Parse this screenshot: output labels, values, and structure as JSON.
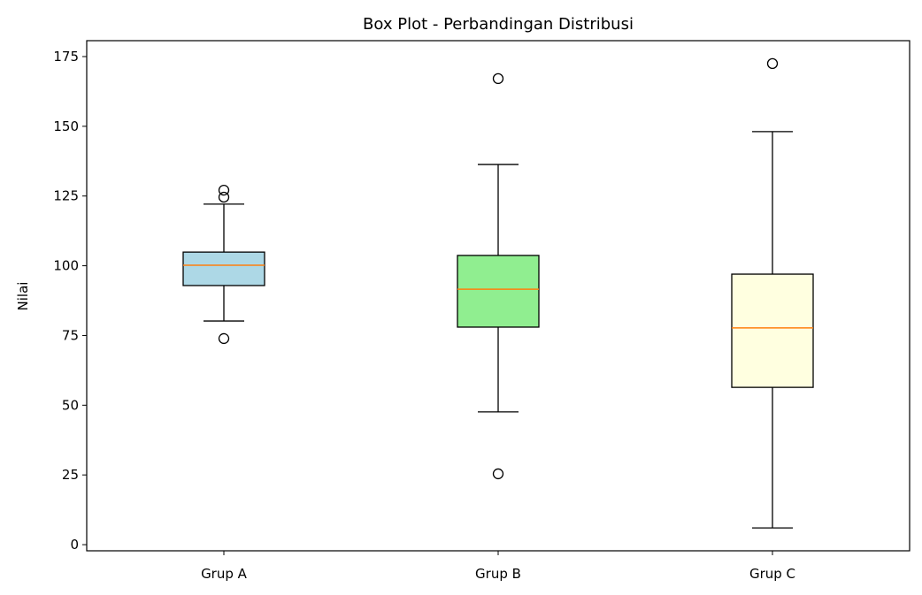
{
  "chart_data": {
    "type": "boxplot",
    "title": "Box Plot - Perbandingan Distribusi",
    "xlabel": "",
    "ylabel": "Nilai",
    "ylim": [
      -2.2,
      180.7
    ],
    "yticks": [
      0,
      25,
      50,
      75,
      100,
      125,
      150,
      175
    ],
    "grid": false,
    "median_color": "#ff7f0e",
    "groups": [
      {
        "label": "Grup A",
        "color": "#add8e6",
        "whisker_low": 80.2,
        "q1": 92.9,
        "median": 100.2,
        "q3": 104.9,
        "whisker_high": 122.1,
        "outliers": [
          127.1,
          124.6,
          73.9
        ]
      },
      {
        "label": "Grup B",
        "color": "#90ee90",
        "whisker_low": 47.6,
        "q1": 78.0,
        "median": 91.6,
        "q3": 103.7,
        "whisker_high": 136.3,
        "outliers": [
          167.1,
          25.4
        ]
      },
      {
        "label": "Grup C",
        "color": "#ffffe0",
        "whisker_low": 6.0,
        "q1": 56.4,
        "median": 77.7,
        "q3": 97.0,
        "whisker_high": 148.1,
        "outliers": [
          172.5
        ]
      }
    ]
  }
}
